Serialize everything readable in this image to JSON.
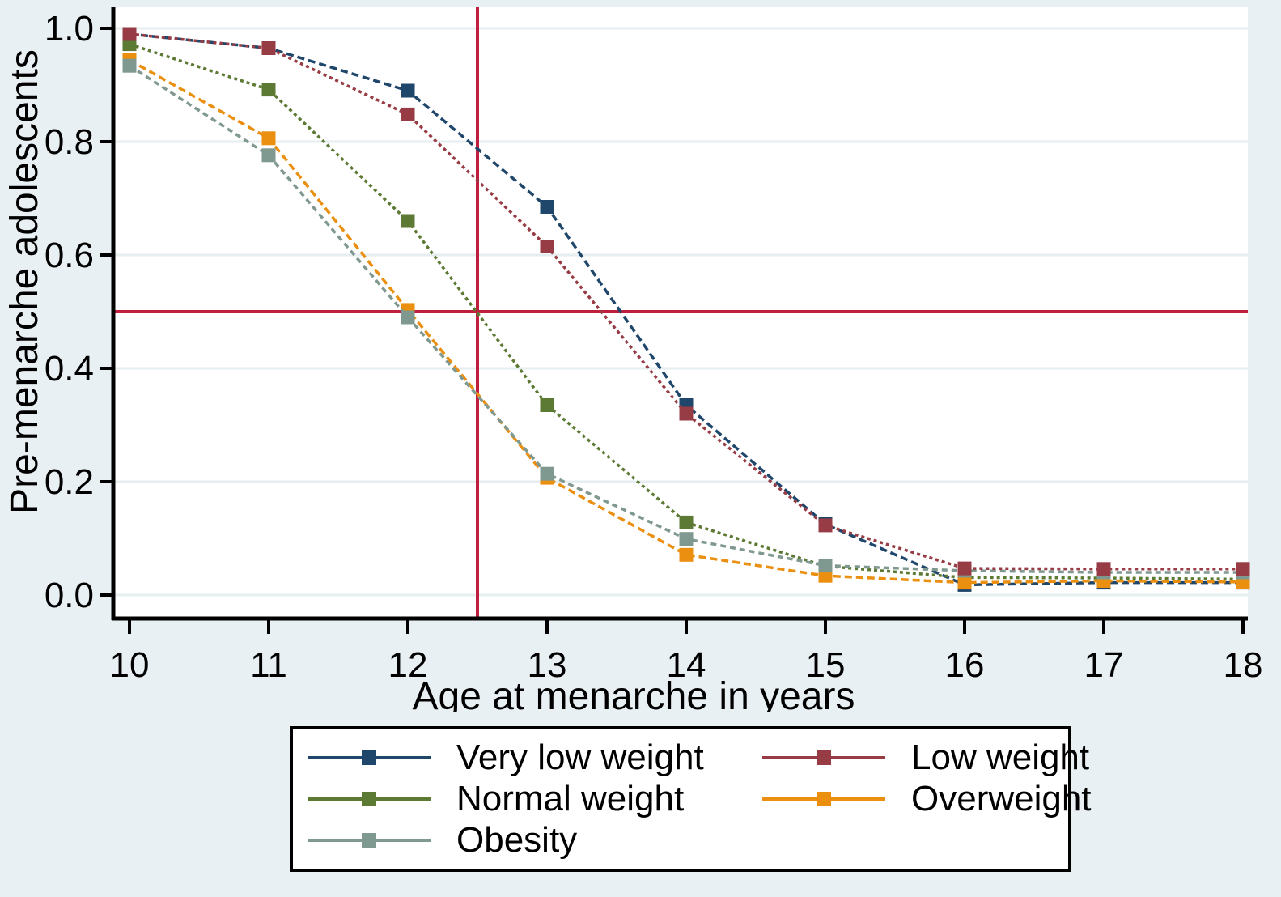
{
  "figure": {
    "background_color": "#e9f0f3",
    "plot_background": "#ffffff",
    "grid_color": "#e7eef0",
    "axis_color": "#000000"
  },
  "chart_data": {
    "type": "line",
    "title": "",
    "xlabel": "Age at menarche in years",
    "ylabel": "Pre-menarche adolescents",
    "x": [
      10,
      11,
      12,
      13,
      14,
      15,
      16,
      17,
      18
    ],
    "x_tick_labels": [
      "10",
      "11",
      "12",
      "13",
      "14",
      "15",
      "16",
      "17",
      "18"
    ],
    "y_tick_values": [
      0.0,
      0.2,
      0.4,
      0.6,
      0.8,
      1.0
    ],
    "y_tick_labels": [
      "0.0",
      "0.2",
      "0.4",
      "0.6",
      "0.8",
      "1.0"
    ],
    "xlim": [
      9.88,
      18.03
    ],
    "ylim": [
      -0.04,
      1.04
    ],
    "grid": "horizontal",
    "legend_position": "bottom-box",
    "reference_lines": {
      "horizontal_y": 0.5,
      "vertical_x": 12.5,
      "color": "#bf1e3d"
    },
    "series": [
      {
        "name": "Very low weight",
        "color": "#1f466b",
        "dash": "9 5",
        "values": [
          0.99,
          0.965,
          0.89,
          0.685,
          0.335,
          0.125,
          0.018,
          0.022,
          0.022
        ]
      },
      {
        "name": "Low weight",
        "color": "#973b44",
        "dash": "4 4",
        "values": [
          0.99,
          0.965,
          0.848,
          0.615,
          0.32,
          0.123,
          0.047,
          0.046,
          0.046
        ]
      },
      {
        "name": "Normal weight",
        "color": "#5c7a33",
        "dash": "4 4",
        "values": [
          0.972,
          0.892,
          0.66,
          0.335,
          0.128,
          0.051,
          0.031,
          0.03,
          0.028
        ]
      },
      {
        "name": "Overweight",
        "color": "#ea8f10",
        "dash": "9 5",
        "values": [
          0.944,
          0.806,
          0.503,
          0.207,
          0.071,
          0.034,
          0.022,
          0.025,
          0.023
        ]
      },
      {
        "name": "Obesity",
        "color": "#809990",
        "dash": "7 5",
        "values": [
          0.934,
          0.776,
          0.49,
          0.214,
          0.099,
          0.052,
          0.043,
          0.04,
          0.04
        ]
      }
    ],
    "legend_column_order": [
      0,
      2,
      4,
      1,
      3
    ]
  }
}
